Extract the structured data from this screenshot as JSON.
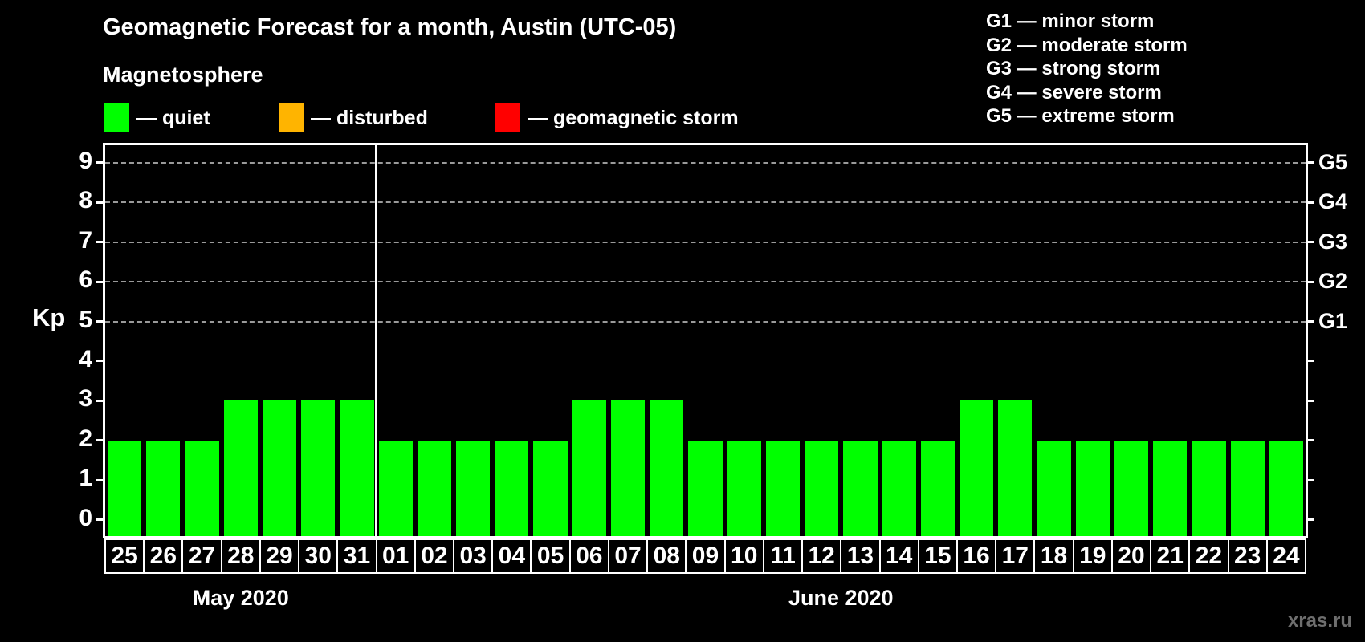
{
  "header": {
    "title": "Geomagnetic Forecast for a month, Austin (UTC-05)",
    "subtitle": "Magnetosphere"
  },
  "legend": {
    "items": [
      {
        "key": "quiet",
        "label": "— quiet",
        "color": "#00ff00"
      },
      {
        "key": "disturbed",
        "label": "— disturbed",
        "color": "#ffb400"
      },
      {
        "key": "storm",
        "label": "— geomagnetic storm",
        "color": "#ff0000"
      }
    ]
  },
  "storm_scale": {
    "lines": [
      "G1 — minor storm",
      "G2 — moderate storm",
      "G3 — strong storm",
      "G4 — severe storm",
      "G5 — extreme storm"
    ]
  },
  "watermark": "xras.ru",
  "chart_data": {
    "type": "bar",
    "title": "Geomagnetic Forecast for a month, Austin (UTC-05)",
    "ylabel": "Kp",
    "ylim": [
      0,
      9
    ],
    "y_ticks": [
      0,
      1,
      2,
      3,
      4,
      5,
      6,
      7,
      8,
      9
    ],
    "gridlines_at_kp": [
      5,
      6,
      7,
      8,
      9
    ],
    "right_axis_labels": [
      {
        "kp": 5,
        "label": "G1"
      },
      {
        "kp": 6,
        "label": "G2"
      },
      {
        "kp": 7,
        "label": "G3"
      },
      {
        "kp": 8,
        "label": "G4"
      },
      {
        "kp": 9,
        "label": "G5"
      }
    ],
    "bar_colors_by_level": {
      "quiet": "#00ff00",
      "disturbed": "#ffb400",
      "storm": "#ff0000"
    },
    "months": [
      {
        "label": "May 2020",
        "days": [
          "25",
          "26",
          "27",
          "28",
          "29",
          "30",
          "31"
        ],
        "kp_values": [
          2,
          2,
          2,
          3,
          3,
          3,
          3
        ]
      },
      {
        "label": "June 2020",
        "days": [
          "01",
          "02",
          "03",
          "04",
          "05",
          "06",
          "07",
          "08",
          "09",
          "10",
          "11",
          "12",
          "13",
          "14",
          "15",
          "16",
          "17",
          "18",
          "19",
          "20",
          "21",
          "22",
          "23",
          "24"
        ],
        "kp_values": [
          2,
          2,
          2,
          2,
          2,
          3,
          3,
          3,
          2,
          2,
          2,
          2,
          2,
          2,
          2,
          3,
          3,
          2,
          2,
          2,
          2,
          2,
          2,
          2
        ]
      }
    ]
  }
}
